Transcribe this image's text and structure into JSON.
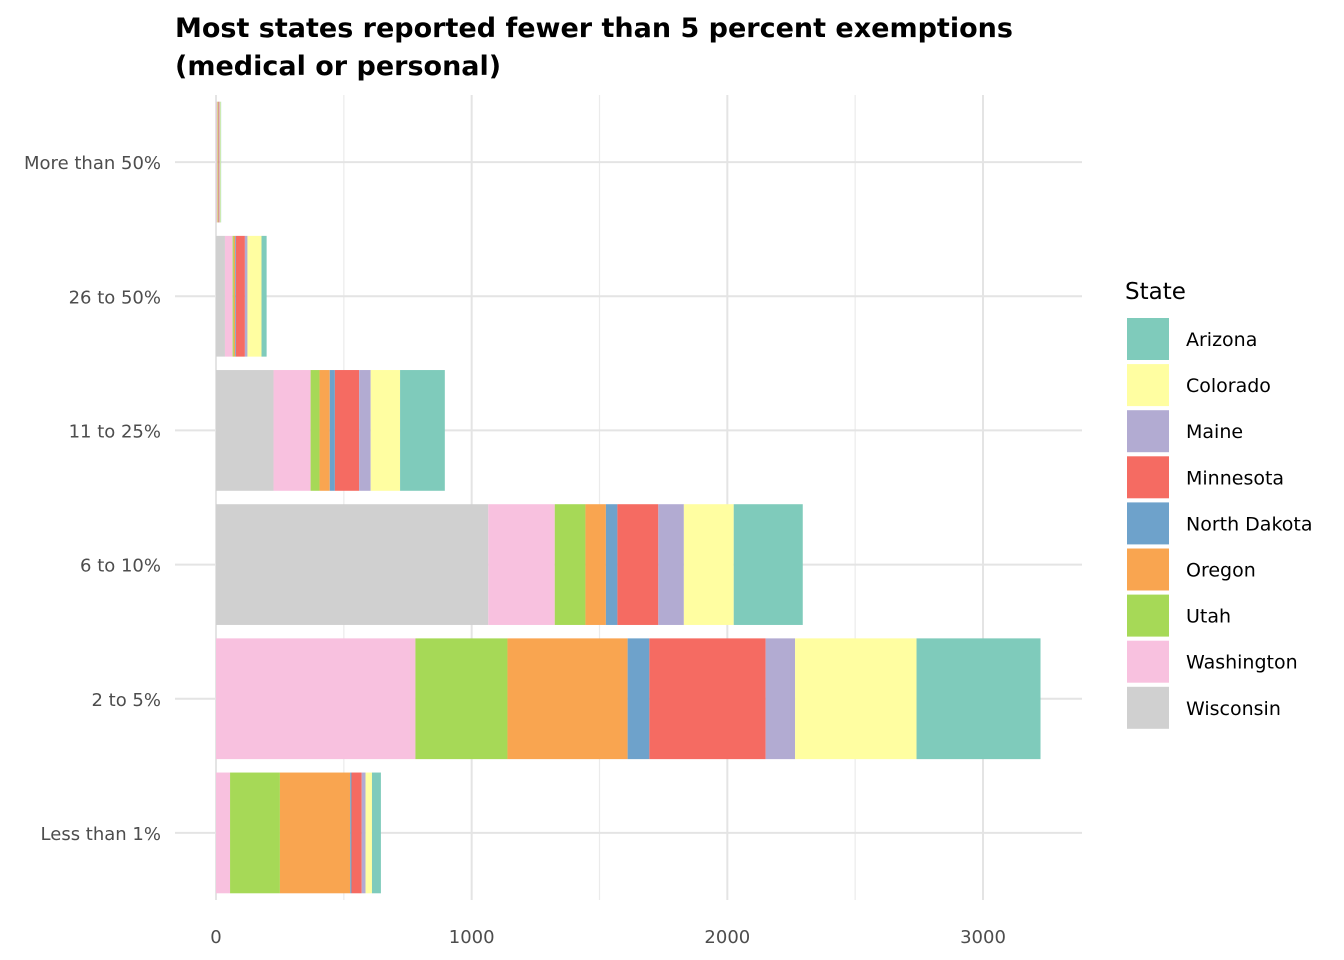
{
  "chart_data": {
    "type": "bar",
    "orientation": "horizontal",
    "stacked": true,
    "title_lines": [
      "Most states reported fewer than 5 percent exemptions",
      "(medical or personal)"
    ],
    "xlabel": "",
    "ylabel": "",
    "xlim": [
      0,
      3380
    ],
    "x_ticks": [
      0,
      1000,
      2000,
      3000
    ],
    "grid": true,
    "legend_position": "right",
    "legend_title": "State",
    "categories": [
      "More than 50%",
      "26 to 50%",
      "11 to 25%",
      "6 to 10%",
      "2 to 5%",
      "Less than 1%"
    ],
    "series": [
      {
        "name": "Wisconsin",
        "color": "#d0d0d0",
        "values": [
          2,
          35,
          225,
          1065,
          0,
          0
        ]
      },
      {
        "name": "Washington",
        "color": "#f8c1df",
        "values": [
          3,
          30,
          145,
          260,
          780,
          55
        ]
      },
      {
        "name": "Utah",
        "color": "#a6d957",
        "values": [
          2,
          5,
          35,
          120,
          360,
          195
        ]
      },
      {
        "name": "Oregon",
        "color": "#f9a550",
        "values": [
          2,
          5,
          40,
          80,
          470,
          275
        ]
      },
      {
        "name": "North Dakota",
        "color": "#6ea2cb",
        "values": [
          1,
          3,
          20,
          45,
          85,
          5
        ]
      },
      {
        "name": "Minnesota",
        "color": "#f56b62",
        "values": [
          3,
          35,
          95,
          160,
          455,
          40
        ]
      },
      {
        "name": "Maine",
        "color": "#b2abd2",
        "values": [
          2,
          10,
          45,
          100,
          115,
          15
        ]
      },
      {
        "name": "Colorado",
        "color": "#fffea1",
        "values": [
          3,
          55,
          115,
          195,
          475,
          25
        ]
      },
      {
        "name": "Arizona",
        "color": "#7fcbbb",
        "values": [
          2,
          20,
          175,
          270,
          485,
          35
        ]
      }
    ],
    "legend_order": [
      "Arizona",
      "Colorado",
      "Maine",
      "Minnesota",
      "North Dakota",
      "Oregon",
      "Utah",
      "Washington",
      "Wisconsin"
    ]
  }
}
